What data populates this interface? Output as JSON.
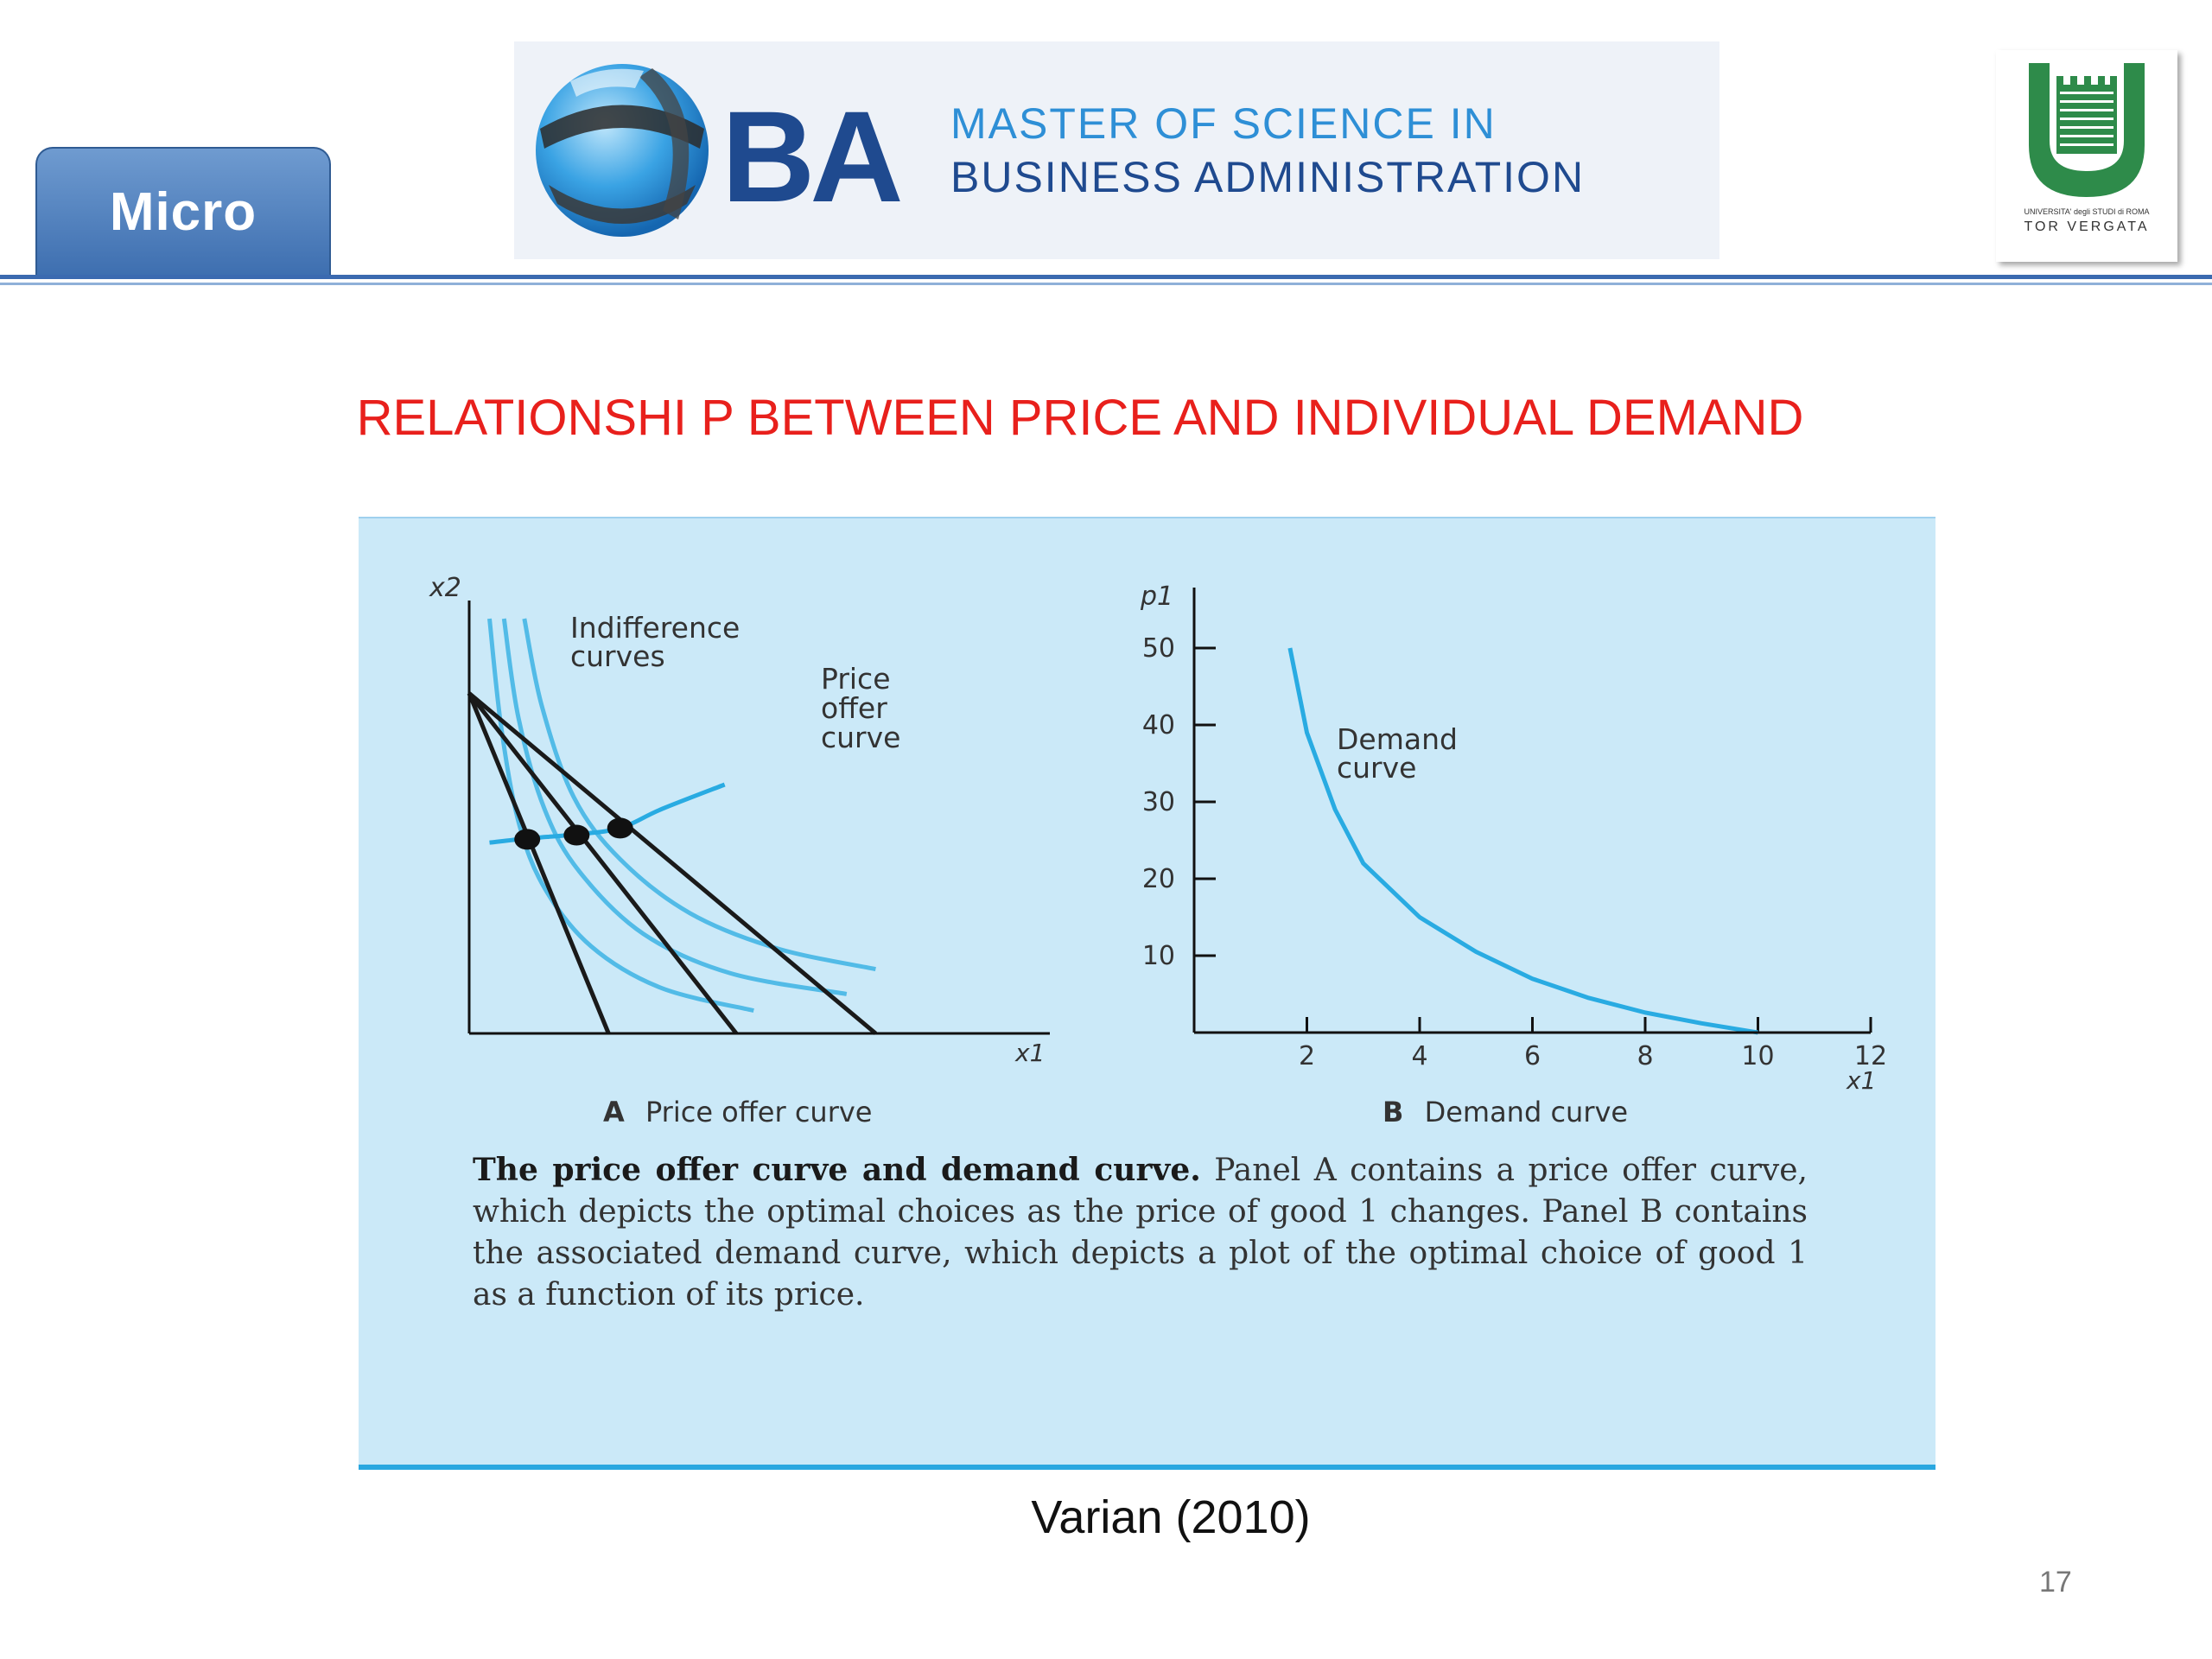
{
  "header": {
    "tab_label": "Micro",
    "banner_letters": "BA",
    "banner_line1": "MASTER OF SCIENCE IN",
    "banner_line2": "BUSINESS ADMINISTRATION",
    "university_line1": "UNIVERSITA' degli STUDI di ROMA",
    "university_line2": "TOR VERGATA"
  },
  "slide": {
    "title": "RELATIONSHI P BETWEEN PRICE AND INDIVIDUAL DEMAND",
    "source": "Varian (2010)",
    "page_number": "17"
  },
  "colors": {
    "title": "#e8201c",
    "tab": "#4a7cc0",
    "figure_bg": "#cbe9f8",
    "curve_blue": "#29abe2",
    "budget_line": "#1a1a1a"
  },
  "chart_data": [
    {
      "type": "line",
      "panel_label": "A",
      "subtitle": "Price offer curve",
      "xlabel": "x1",
      "ylabel": "x2",
      "annotations": [
        "Indifference curves",
        "Price offer curve"
      ],
      "series": [
        {
          "role": "budget-line",
          "points": [
            [
              0,
              8.2
            ],
            [
              2.4,
              0
            ]
          ]
        },
        {
          "role": "budget-line",
          "points": [
            [
              0,
              8.2
            ],
            [
              4.6,
              0
            ]
          ]
        },
        {
          "role": "budget-line",
          "points": [
            [
              0,
              8.2
            ],
            [
              7.0,
              0
            ]
          ]
        },
        {
          "role": "indifference-curve",
          "points": [
            [
              0.35,
              10
            ],
            [
              0.55,
              7.4
            ],
            [
              0.85,
              5.1
            ],
            [
              1.3,
              3.5
            ],
            [
              2.1,
              2.1
            ],
            [
              3.3,
              1.1
            ],
            [
              4.9,
              0.55
            ]
          ]
        },
        {
          "role": "indifference-curve",
          "points": [
            [
              0.6,
              10
            ],
            [
              0.85,
              7.6
            ],
            [
              1.3,
              5.4
            ],
            [
              1.9,
              3.9
            ],
            [
              3.0,
              2.4
            ],
            [
              4.5,
              1.45
            ],
            [
              6.5,
              0.95
            ]
          ]
        },
        {
          "role": "indifference-curve",
          "points": [
            [
              0.95,
              10
            ],
            [
              1.25,
              7.9
            ],
            [
              1.8,
              5.7
            ],
            [
              2.6,
              4.2
            ],
            [
              3.8,
              2.9
            ],
            [
              5.3,
              2.05
            ],
            [
              7.0,
              1.55
            ]
          ]
        },
        {
          "role": "price-offer-curve",
          "points": [
            [
              0.35,
              4.6
            ],
            [
              1.0,
              4.7
            ],
            [
              1.85,
              4.8
            ],
            [
              2.6,
              4.95
            ],
            [
              3.3,
              5.4
            ],
            [
              4.4,
              6.0
            ]
          ]
        }
      ],
      "optimal_choices": [
        [
          1.0,
          4.68
        ],
        [
          1.85,
          4.78
        ],
        [
          2.6,
          4.95
        ]
      ]
    },
    {
      "type": "line",
      "panel_label": "B",
      "subtitle": "Demand curve",
      "xlabel": "x1",
      "ylabel": "p1",
      "x_ticks": [
        2,
        4,
        6,
        8,
        10,
        12
      ],
      "y_ticks": [
        10,
        20,
        30,
        40,
        50
      ],
      "xlim": [
        0,
        12
      ],
      "ylim": [
        0,
        55
      ],
      "annotations": [
        "Demand curve"
      ],
      "series": [
        {
          "role": "demand-curve",
          "x": [
            1.7,
            2,
            2.5,
            3,
            4,
            5,
            6,
            7,
            8,
            9,
            10
          ],
          "y": [
            50,
            39,
            29,
            22,
            15,
            10.5,
            7,
            4.5,
            2.6,
            1.2,
            0
          ]
        }
      ]
    }
  ],
  "caption": {
    "lead": "The price offer curve and demand curve.",
    "body": "Panel A contains a price offer curve, which depicts the optimal choices as the price of good 1 changes. Panel B contains the associated demand curve, which depicts a plot of the optimal choice of good 1 as a function of its price."
  }
}
